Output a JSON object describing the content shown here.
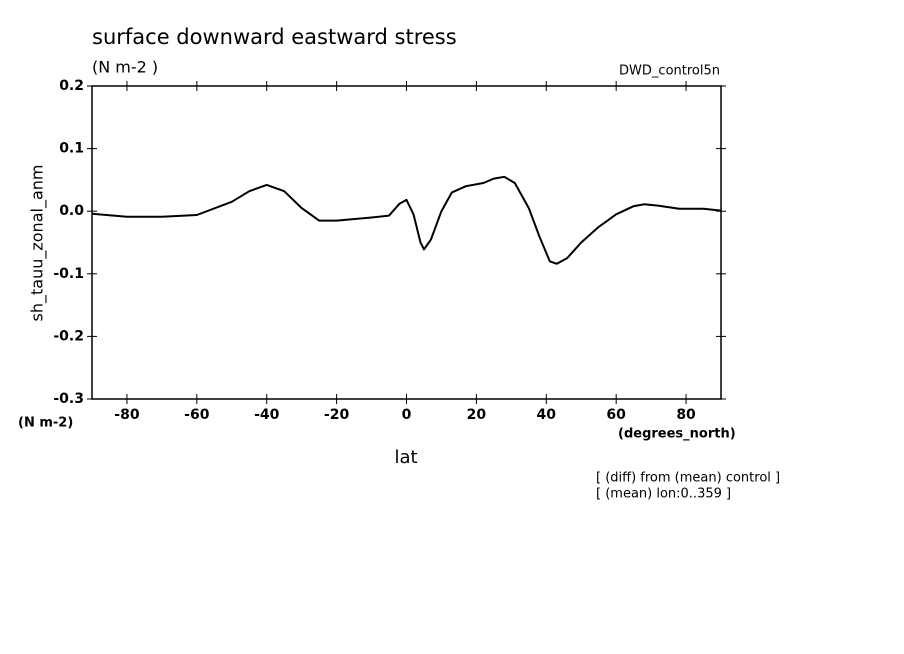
{
  "chart_data": {
    "type": "line",
    "title": "surface downward eastward stress",
    "subtitle": "(N m-2  )",
    "dataset_label": "DWD_control5n",
    "y_label": "sh_tauu_zonal_anm",
    "y_units": "(N m-2)",
    "x_units": "(degrees_north)",
    "x_label": "lat",
    "notes": [
      "[ (diff) from (mean) control ]",
      "[ (mean) lon:0..359 ]"
    ],
    "x": [
      -90,
      -80,
      -70,
      -60,
      -50,
      -45,
      -40,
      -35,
      -30,
      -25,
      -20,
      -10,
      -5,
      -2,
      0,
      2,
      4,
      5,
      7,
      10,
      13,
      17,
      22,
      25,
      28,
      31,
      35,
      38,
      41,
      43,
      46,
      50,
      55,
      60,
      65,
      68,
      72,
      78,
      85,
      90
    ],
    "series": [
      {
        "color": "#000000",
        "values": [
          -0.004,
          -0.009,
          -0.009,
          -0.006,
          0.015,
          0.032,
          0.042,
          0.032,
          0.005,
          -0.015,
          -0.015,
          -0.01,
          -0.007,
          0.012,
          0.018,
          -0.005,
          -0.05,
          -0.061,
          -0.045,
          0.0,
          0.03,
          0.04,
          0.045,
          0.052,
          0.055,
          0.045,
          0.005,
          -0.04,
          -0.08,
          -0.084,
          -0.075,
          -0.05,
          -0.025,
          -0.005,
          0.008,
          0.011,
          0.009,
          0.004,
          0.004,
          0.001
        ]
      }
    ],
    "xlim": [
      -90,
      90
    ],
    "xticks": [
      -80,
      -60,
      -40,
      -20,
      0,
      20,
      40,
      60,
      80
    ],
    "ylim": [
      -0.3,
      0.2
    ],
    "yticks": [
      -0.3,
      -0.2,
      -0.1,
      {
        "value": 0,
        "label": "0.0"
      },
      0.1,
      0.2
    ]
  }
}
